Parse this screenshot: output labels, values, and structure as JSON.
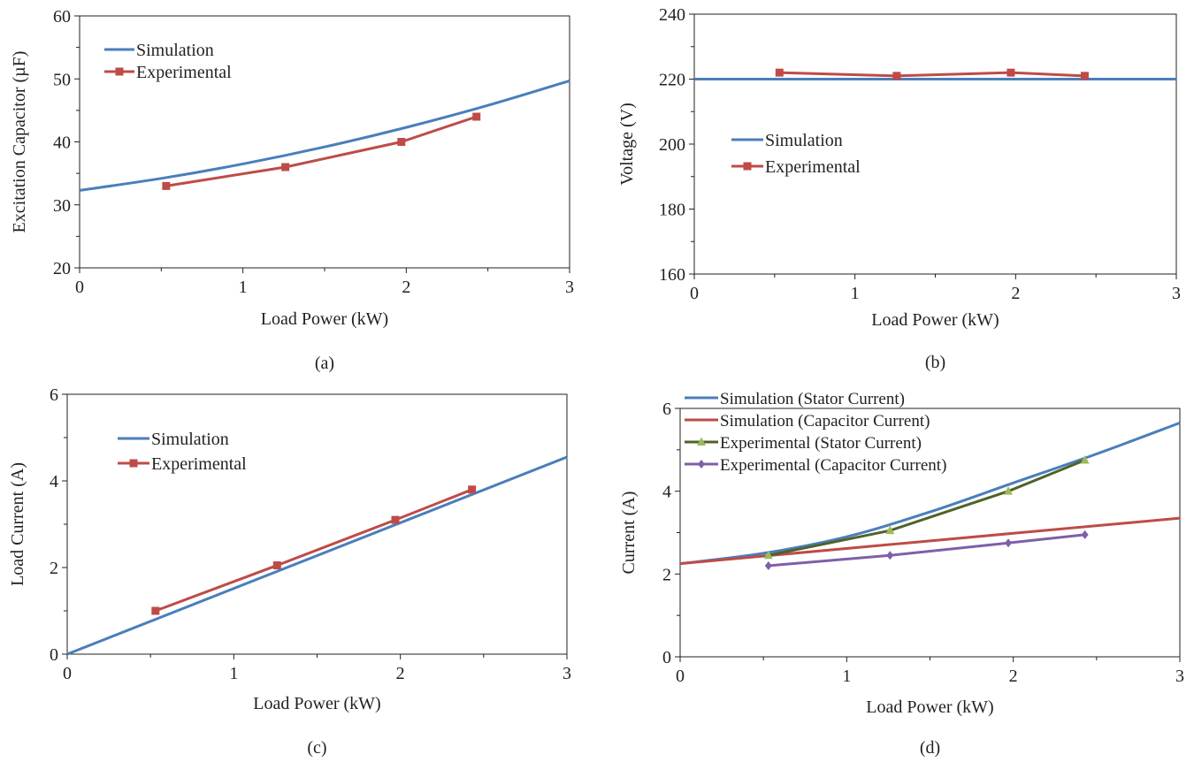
{
  "chart_data": [
    {
      "type": "line",
      "panel_label": "(a)",
      "xlabel": "Load  Power (kW)",
      "ylabel": "Excitation Capacitor  (µF)",
      "xlim": [
        0,
        3
      ],
      "ylim": [
        20,
        60
      ],
      "xticks": [
        0,
        1,
        2,
        3
      ],
      "yticks": [
        20,
        30,
        40,
        50,
        60
      ],
      "grid": false,
      "legend_position": "top-left",
      "series": [
        {
          "name": "Simulation",
          "color": "#4a7ebb",
          "marker": "none",
          "x": [
            0,
            0.5,
            1.0,
            1.5,
            2.0,
            2.5,
            3.0
          ],
          "y": [
            32.3,
            34.2,
            36.5,
            39.2,
            42.3,
            45.8,
            49.7
          ]
        },
        {
          "name": "Experimental",
          "color": "#be4b48",
          "marker": "square",
          "x": [
            0.53,
            1.26,
            1.97,
            2.43
          ],
          "y": [
            33,
            36,
            40,
            44
          ]
        }
      ]
    },
    {
      "type": "line",
      "panel_label": "(b)",
      "xlabel": "Load  Power (kW)",
      "ylabel": "Voltage  (V)",
      "xlim": [
        0,
        3
      ],
      "ylim": [
        160,
        240
      ],
      "xticks": [
        0,
        1,
        2,
        3
      ],
      "yticks": [
        160,
        180,
        200,
        220,
        240
      ],
      "grid": false,
      "legend_position": "center-left",
      "series": [
        {
          "name": "Simulation",
          "color": "#4a7ebb",
          "marker": "none",
          "x": [
            0,
            3
          ],
          "y": [
            220,
            220
          ]
        },
        {
          "name": "Experimental",
          "color": "#be4b48",
          "marker": "square",
          "x": [
            0.53,
            1.26,
            1.97,
            2.43
          ],
          "y": [
            222,
            221,
            222,
            221
          ]
        }
      ]
    },
    {
      "type": "line",
      "panel_label": "(c)",
      "xlabel": "Load  Power (kW)",
      "ylabel": "Load  Current (A)",
      "xlim": [
        0,
        3
      ],
      "ylim": [
        0,
        6
      ],
      "xticks": [
        0,
        1,
        2,
        3
      ],
      "yticks": [
        0,
        2,
        4,
        6
      ],
      "grid": false,
      "legend_position": "top-left",
      "series": [
        {
          "name": "Simulation",
          "color": "#4a7ebb",
          "marker": "none",
          "x": [
            0,
            3
          ],
          "y": [
            0,
            4.55
          ]
        },
        {
          "name": "Experimental",
          "color": "#be4b48",
          "marker": "square",
          "x": [
            0.53,
            1.26,
            1.97,
            2.43
          ],
          "y": [
            1.0,
            2.05,
            3.1,
            3.8
          ]
        }
      ]
    },
    {
      "type": "line",
      "panel_label": "(d)",
      "xlabel": "Load  Power (kW)",
      "ylabel": "Current (A)",
      "xlim": [
        0,
        3
      ],
      "ylim": [
        0,
        6
      ],
      "xticks": [
        0,
        1,
        2,
        3
      ],
      "yticks": [
        0,
        2,
        4,
        6
      ],
      "grid": false,
      "legend_position": "top-left",
      "series": [
        {
          "name": "Simulation (Stator Current)",
          "color": "#4a7ebb",
          "marker": "none",
          "x": [
            0,
            0.5,
            1.0,
            1.5,
            2.0,
            2.5,
            3.0
          ],
          "y": [
            2.25,
            2.5,
            2.9,
            3.5,
            4.2,
            4.9,
            5.65
          ]
        },
        {
          "name": "Simulation (Capacitor Current)",
          "color": "#be4b48",
          "marker": "none",
          "x": [
            0,
            3
          ],
          "y": [
            2.25,
            3.35
          ]
        },
        {
          "name": "Experimental (Stator Current)",
          "color": "#4f6228",
          "marker": "triangle",
          "marker_color": "#9bbb59",
          "x": [
            0.53,
            1.26,
            1.97,
            2.43
          ],
          "y": [
            2.45,
            3.05,
            4.0,
            4.75
          ]
        },
        {
          "name": "Experimental (Capacitor Current)",
          "color": "#7f5fa8",
          "marker": "diamond",
          "x": [
            0.53,
            1.26,
            1.97,
            2.43
          ],
          "y": [
            2.2,
            2.45,
            2.75,
            2.95
          ]
        }
      ]
    }
  ]
}
